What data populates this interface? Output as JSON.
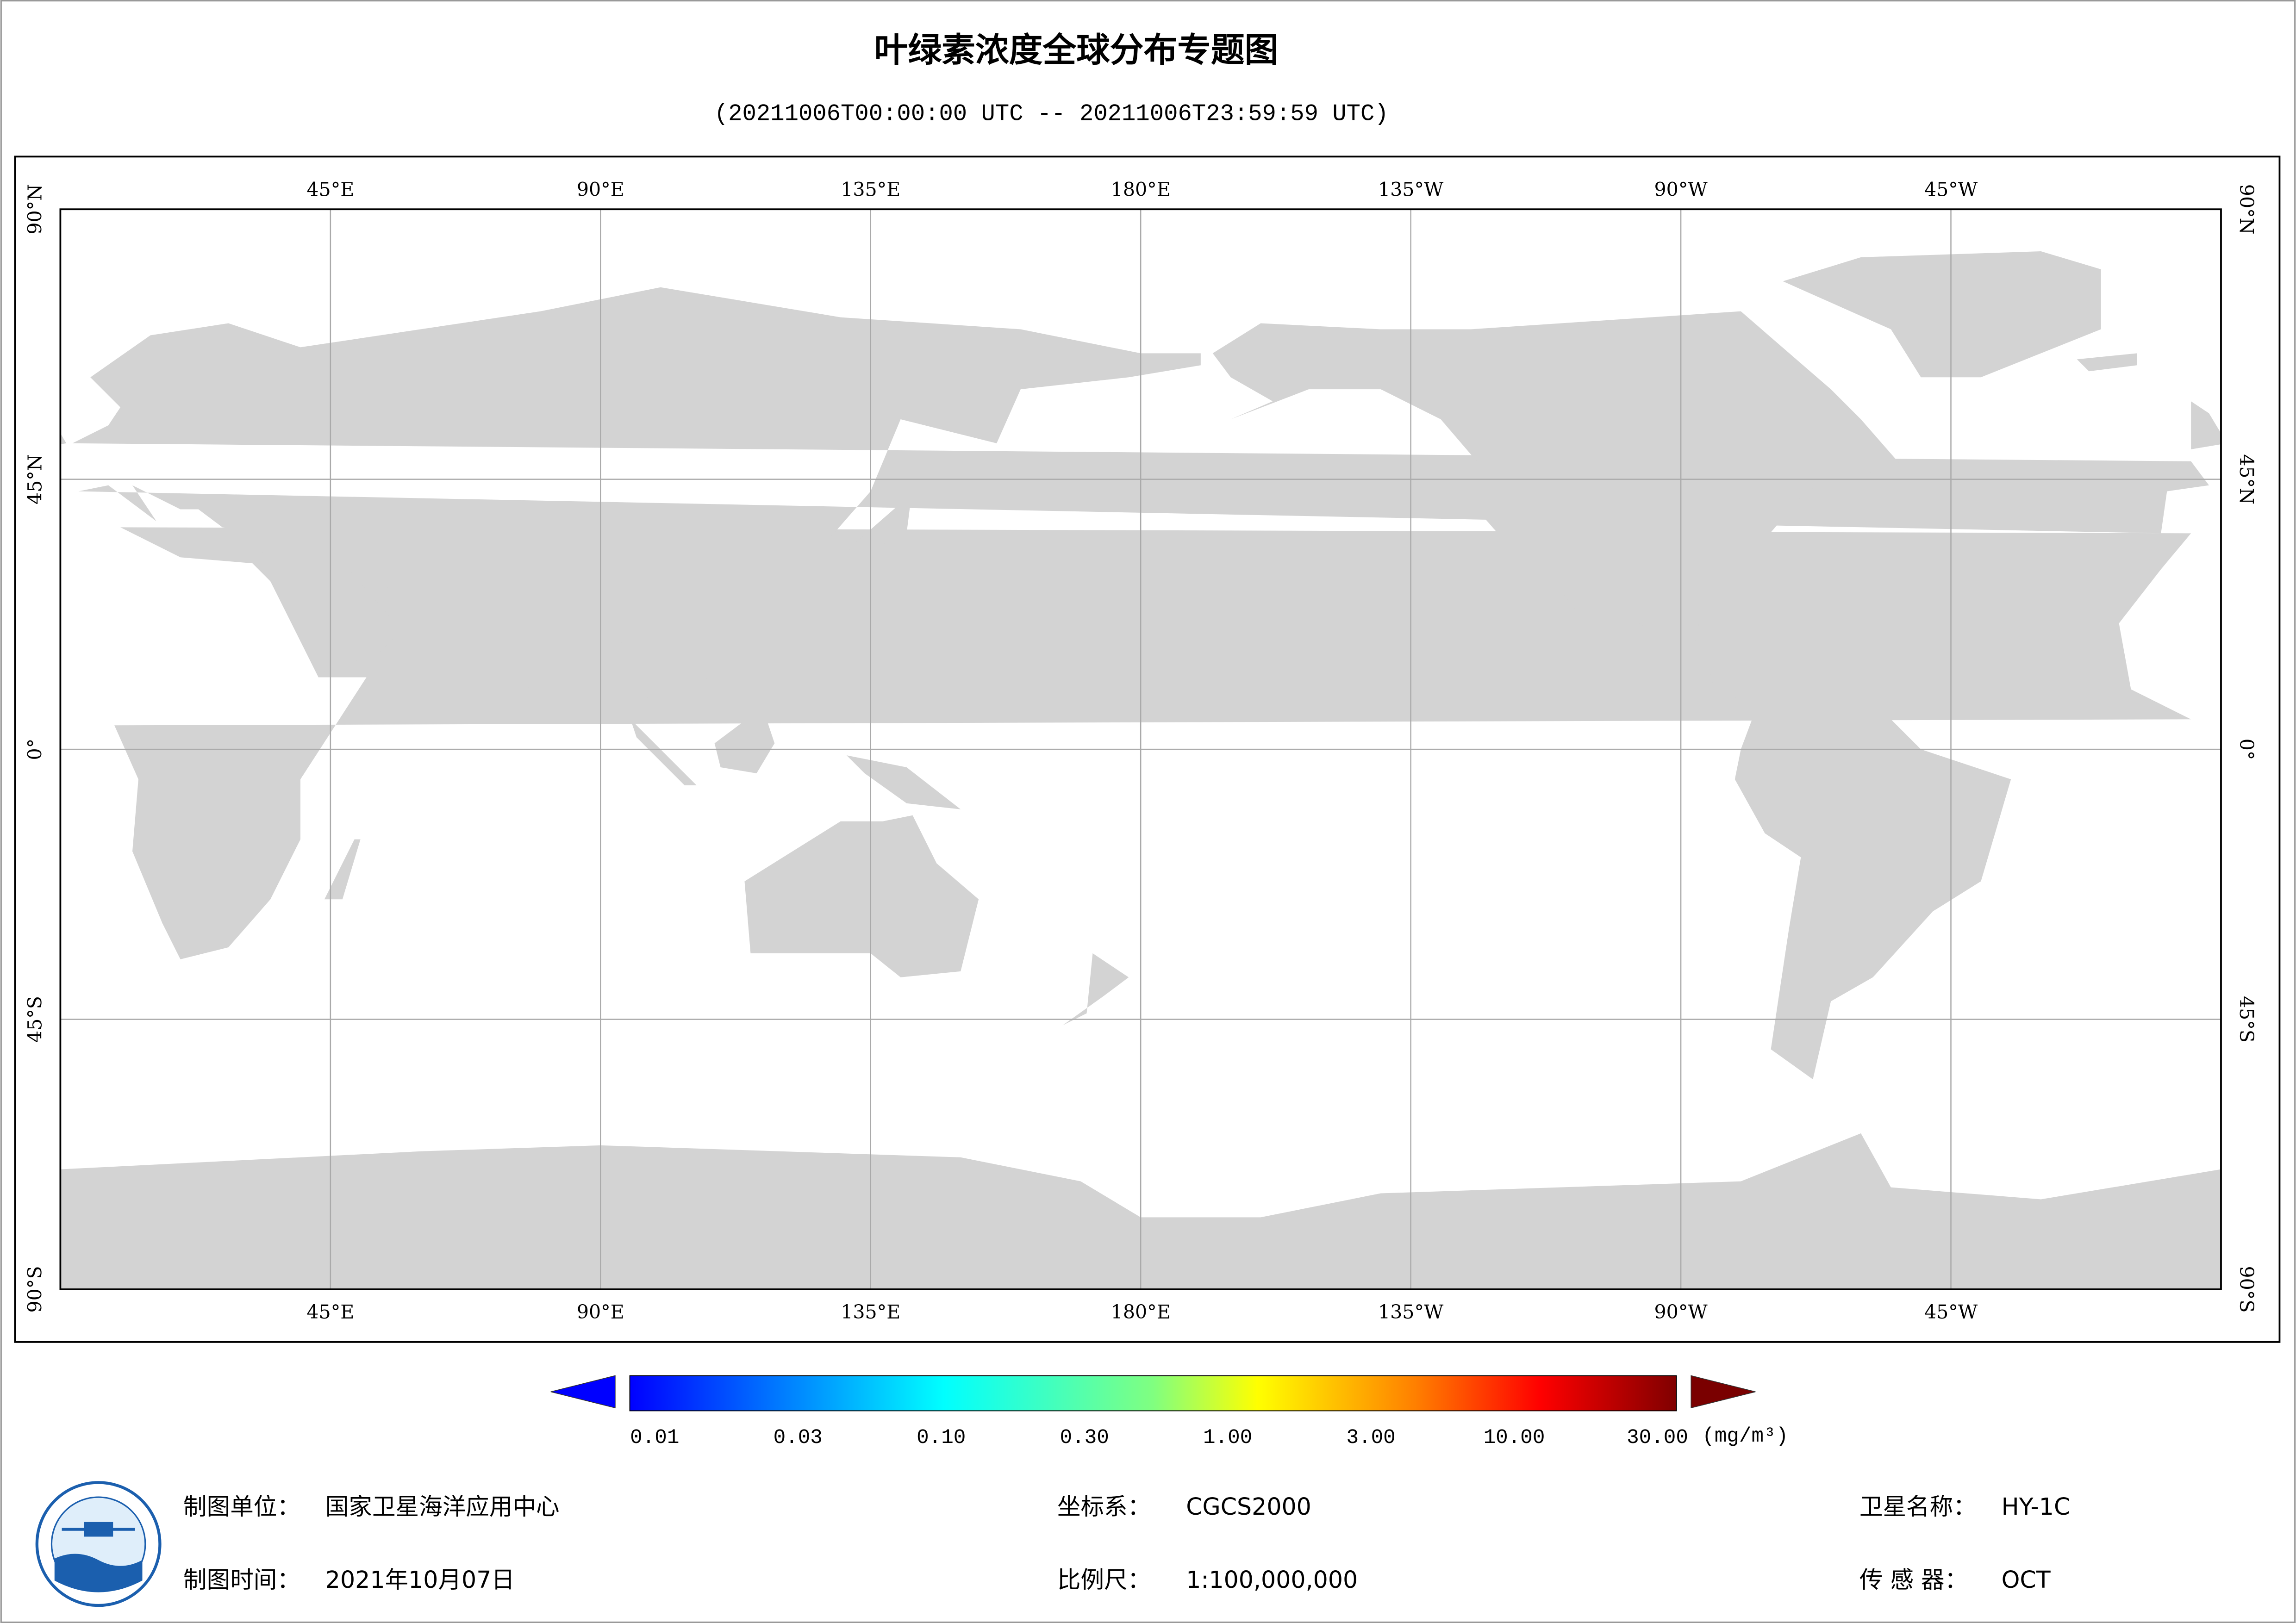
{
  "header": {
    "title": "叶绿素浓度全球分布专题图",
    "subtitle": "(20211006T00:00:00 UTC -- 20211006T23:59:59 UTC)"
  },
  "map": {
    "lon_ticks": [
      "45°E",
      "90°E",
      "135°E",
      "180°E",
      "135°W",
      "90°W",
      "45°W"
    ],
    "lat_ticks": [
      "90°N",
      "45°N",
      "0°",
      "45°S",
      "90°S"
    ]
  },
  "colorbar": {
    "ticks": [
      "0.01",
      "0.03",
      "0.10",
      "0.30",
      "1.00",
      "3.00",
      "10.00",
      "30.00"
    ],
    "unit": "(mg/m³)"
  },
  "footer": {
    "producer": {
      "label": "制图单位：",
      "value": "国家卫星海洋应用中心"
    },
    "date": {
      "label": "制图时间：",
      "value": "2021年10月07日"
    },
    "crs": {
      "label": "坐标系：",
      "value": "CGCS2000"
    },
    "scale": {
      "label": "比例尺：",
      "value": "1:100,000,000"
    },
    "satellite": {
      "label": "卫星名称：",
      "value": "HY-1C"
    },
    "sensor": {
      "label": "传 感 器：",
      "value": "OCT"
    }
  }
}
